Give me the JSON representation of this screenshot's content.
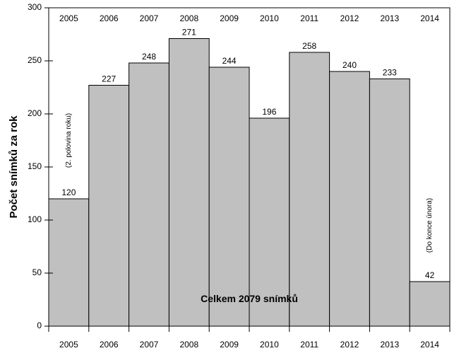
{
  "chart_data": {
    "type": "bar",
    "y_label": "Počet snímků za rok",
    "categories": [
      "2005",
      "2006",
      "2007",
      "2008",
      "2009",
      "2010",
      "2011",
      "2012",
      "2013",
      "2014"
    ],
    "values": [
      120,
      227,
      248,
      271,
      244,
      196,
      258,
      240,
      233,
      42
    ],
    "color": "#c0c0c0",
    "ylim": [
      0,
      300
    ],
    "yticks": [
      0,
      50,
      100,
      150,
      200,
      250,
      300
    ],
    "annotations": [
      "(2. polovina roku)",
      "(Do konce února)",
      "Celkem 2079 snímků"
    ]
  }
}
